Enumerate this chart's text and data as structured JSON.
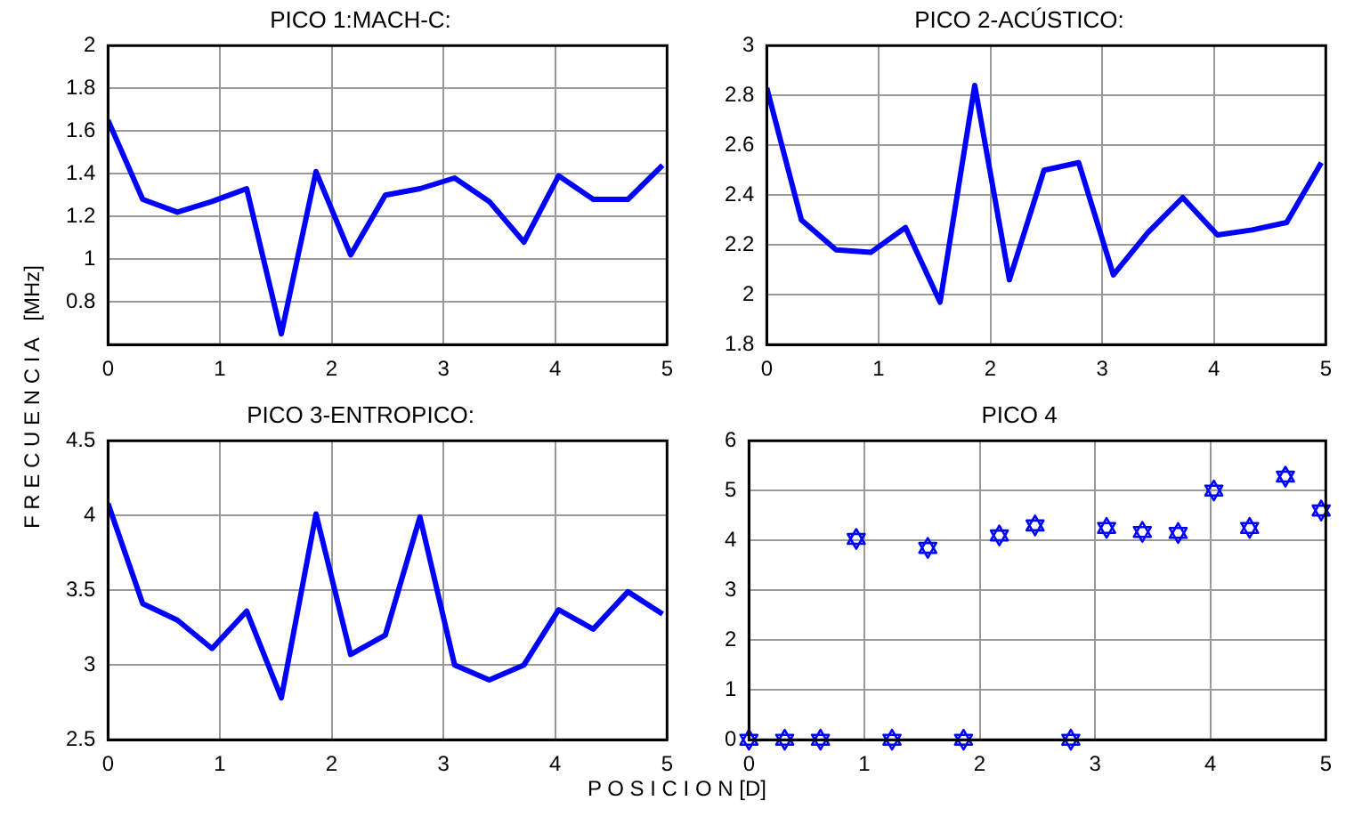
{
  "chart_data": [
    {
      "type": "line",
      "title": "PICO 1:MACH-C:",
      "ylabel": "F R E C U E N C I A   [MHz]",
      "x": [
        0,
        0.31,
        0.62,
        0.93,
        1.24,
        1.55,
        1.86,
        2.17,
        2.48,
        2.79,
        3.1,
        3.41,
        3.72,
        4.03,
        4.34,
        4.65,
        4.96
      ],
      "series": [
        {
          "color": "#0000ff",
          "values": [
            1.65,
            1.28,
            1.22,
            1.27,
            1.33,
            0.65,
            1.41,
            1.02,
            1.3,
            1.33,
            1.38,
            1.27,
            1.08,
            1.39,
            1.28,
            1.28,
            1.44
          ]
        }
      ],
      "xlim": [
        0,
        5
      ],
      "xticks": [
        0,
        1,
        2,
        3,
        4,
        5
      ],
      "ylim": [
        0.6,
        2
      ],
      "yticks": [
        {
          "value": 0.6,
          "label": null
        },
        0.8,
        1,
        1.2,
        1.4,
        1.6,
        1.8,
        2
      ],
      "grid": true,
      "legend": false,
      "marker": "none",
      "line_style": "solid"
    },
    {
      "type": "line",
      "title": "PICO 2-ACÚSTICO:",
      "x": [
        0,
        0.31,
        0.62,
        0.93,
        1.24,
        1.55,
        1.86,
        2.17,
        2.48,
        2.79,
        3.1,
        3.41,
        3.72,
        4.03,
        4.34,
        4.65,
        4.96
      ],
      "series": [
        {
          "color": "#0000ff",
          "values": [
            2.83,
            2.3,
            2.18,
            2.17,
            2.27,
            1.97,
            2.84,
            2.06,
            2.5,
            2.53,
            2.08,
            2.25,
            2.39,
            2.24,
            2.26,
            2.29,
            2.53
          ]
        }
      ],
      "xlim": [
        0,
        5
      ],
      "xticks": [
        0,
        1,
        2,
        3,
        4,
        5
      ],
      "ylim": [
        1.8,
        3
      ],
      "yticks": [
        1.8,
        2,
        2.2,
        2.4,
        2.6,
        2.8,
        3
      ],
      "grid": true,
      "legend": false,
      "marker": "none",
      "line_style": "solid"
    },
    {
      "type": "line",
      "title": "PICO 3-ENTROPICO:",
      "xlabel": "P O S I C I O N [D]",
      "x": [
        0,
        0.31,
        0.62,
        0.93,
        1.24,
        1.55,
        1.86,
        2.17,
        2.48,
        2.79,
        3.1,
        3.41,
        3.72,
        4.03,
        4.34,
        4.65,
        4.96
      ],
      "series": [
        {
          "color": "#0000ff",
          "values": [
            4.08,
            3.41,
            3.3,
            3.11,
            3.36,
            2.78,
            4.01,
            3.07,
            3.2,
            3.99,
            3.0,
            2.9,
            3.0,
            3.37,
            3.24,
            3.49,
            3.34
          ]
        }
      ],
      "xlim": [
        0,
        5
      ],
      "xticks": [
        0,
        1,
        2,
        3,
        4,
        5
      ],
      "ylim": [
        2.5,
        4.5
      ],
      "yticks": [
        2.5,
        3,
        3.5,
        4,
        4.5
      ],
      "grid": true,
      "legend": false,
      "marker": "none",
      "line_style": "solid"
    },
    {
      "type": "scatter",
      "title": "PICO 4",
      "x": [
        0,
        0.31,
        0.62,
        0.93,
        1.24,
        1.55,
        1.86,
        2.17,
        2.48,
        2.79,
        3.1,
        3.41,
        3.72,
        4.03,
        4.34,
        4.65,
        4.96
      ],
      "series": [
        {
          "color": "#0000ff",
          "values": [
            0,
            0,
            0,
            4.03,
            0,
            3.85,
            0,
            4.1,
            4.3,
            0,
            4.25,
            4.17,
            4.15,
            5.0,
            4.25,
            5.28,
            4.6
          ]
        }
      ],
      "xlim": [
        0,
        5
      ],
      "xticks": [
        0,
        1,
        2,
        3,
        4,
        5
      ],
      "ylim": [
        0,
        6
      ],
      "yticks": [
        0,
        1,
        2,
        3,
        4,
        5,
        6
      ],
      "grid": true,
      "legend": false,
      "marker": "star"
    }
  ]
}
